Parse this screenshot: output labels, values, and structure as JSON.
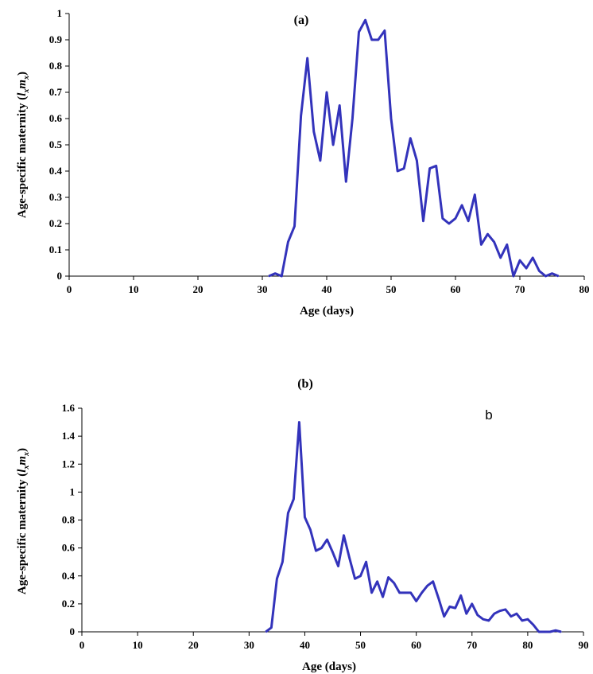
{
  "chart_data": [
    {
      "type": "line",
      "title": "(a)",
      "xlabel": "Age (days)",
      "ylabel_parts": [
        "Age-specific maternity (",
        "l",
        "x",
        "m",
        "x",
        ")"
      ],
      "xlim": [
        0,
        80
      ],
      "ylim": [
        0,
        1
      ],
      "xticks": [
        "0",
        "10",
        "20",
        "30",
        "40",
        "50",
        "60",
        "70",
        "80"
      ],
      "yticks": [
        "0",
        "0.1",
        "0.2",
        "0.3",
        "0.4",
        "0.5",
        "0.6",
        "0.7",
        "0.8",
        "0.9",
        "1"
      ],
      "grid": false,
      "color": "#3333bb",
      "series": [
        {
          "x": [
            31,
            32,
            33,
            34,
            35,
            36,
            37,
            38,
            39,
            40,
            41,
            42,
            43,
            44,
            45,
            46,
            47,
            48,
            49,
            50,
            51,
            52,
            53,
            54,
            55,
            56,
            57,
            58,
            59,
            60,
            61,
            62,
            63,
            64,
            65,
            66,
            67,
            68,
            69,
            70,
            71,
            72,
            73,
            74,
            75,
            76
          ],
          "values": [
            0,
            0.01,
            0,
            0.13,
            0.19,
            0.61,
            0.83,
            0.55,
            0.44,
            0.7,
            0.5,
            0.65,
            0.36,
            0.6,
            0.93,
            0.975,
            0.9,
            0.9,
            0.935,
            0.6,
            0.4,
            0.41,
            0.525,
            0.44,
            0.21,
            0.41,
            0.42,
            0.22,
            0.2,
            0.22,
            0.27,
            0.21,
            0.31,
            0.12,
            0.16,
            0.13,
            0.07,
            0.12,
            0,
            0.06,
            0.03,
            0.07,
            0.02,
            0,
            0.01,
            0
          ]
        }
      ]
    },
    {
      "type": "line",
      "title": "(b)",
      "annotation": "b",
      "xlabel": "Age (days)",
      "ylabel_parts": [
        "Age-specific maternity (",
        "l",
        "x",
        "m",
        "x",
        ")"
      ],
      "xlim": [
        0,
        90
      ],
      "ylim": [
        0,
        1.6
      ],
      "xticks": [
        "0",
        "10",
        "20",
        "30",
        "40",
        "50",
        "60",
        "70",
        "80",
        "90"
      ],
      "yticks": [
        "0",
        "0.2",
        "0.4",
        "0.6",
        "0.8",
        "1",
        "1.2",
        "1.4",
        "1.6"
      ],
      "grid": false,
      "color": "#3333bb",
      "series": [
        {
          "x": [
            33,
            34,
            35,
            36,
            37,
            38,
            39,
            40,
            41,
            42,
            43,
            44,
            45,
            46,
            47,
            48,
            49,
            50,
            51,
            52,
            53,
            54,
            55,
            56,
            57,
            58,
            59,
            60,
            61,
            62,
            63,
            64,
            65,
            66,
            67,
            68,
            69,
            70,
            71,
            72,
            73,
            74,
            75,
            76,
            77,
            78,
            79,
            80,
            81,
            82,
            83,
            84,
            85,
            86
          ],
          "values": [
            0,
            0.03,
            0.38,
            0.5,
            0.85,
            0.95,
            1.5,
            0.82,
            0.73,
            0.58,
            0.6,
            0.66,
            0.57,
            0.47,
            0.69,
            0.53,
            0.38,
            0.4,
            0.5,
            0.28,
            0.36,
            0.25,
            0.39,
            0.35,
            0.28,
            0.28,
            0.28,
            0.22,
            0.28,
            0.33,
            0.36,
            0.24,
            0.11,
            0.18,
            0.17,
            0.26,
            0.13,
            0.2,
            0.12,
            0.09,
            0.08,
            0.13,
            0.15,
            0.16,
            0.11,
            0.13,
            0.08,
            0.09,
            0.05,
            0,
            0,
            0,
            0.01,
            0
          ]
        }
      ]
    }
  ]
}
